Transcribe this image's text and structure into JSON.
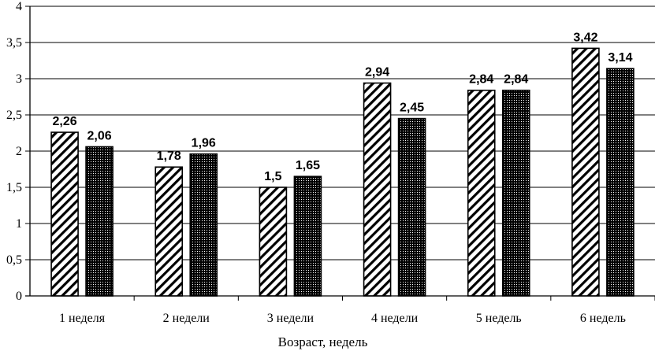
{
  "chart_data": {
    "type": "bar",
    "categories": [
      "1 неделя",
      "2 недели",
      "3 недели",
      "4 недели",
      "5 недель",
      "6 недель"
    ],
    "series": [
      {
        "values": [
          2.26,
          1.78,
          1.5,
          2.94,
          2.84,
          3.42
        ],
        "labels": [
          "2,26",
          "1,78",
          "1,5",
          "2,94",
          "2,84",
          "3,42"
        ],
        "pattern": "diagonal-hatch"
      },
      {
        "values": [
          2.06,
          1.96,
          1.65,
          2.45,
          2.84,
          3.14
        ],
        "labels": [
          "2,06",
          "1,96",
          "1,65",
          "2,45",
          "2,84",
          "3,14"
        ],
        "pattern": "dotted"
      }
    ],
    "title": "",
    "xlabel": "Возраст, недель",
    "ylabel": "",
    "ylim": [
      0,
      4
    ],
    "yticks": [
      0,
      0.5,
      1,
      1.5,
      2,
      2.5,
      3,
      3.5,
      4
    ],
    "ytick_labels": [
      "0",
      "0,5",
      "1",
      "1,5",
      "2",
      "2,5",
      "3",
      "3,5",
      "4"
    ],
    "grid": true,
    "legend": "none",
    "colors": {
      "bar_stroke": "#000000",
      "gridline": "#000000",
      "background": "#ffffff"
    }
  }
}
